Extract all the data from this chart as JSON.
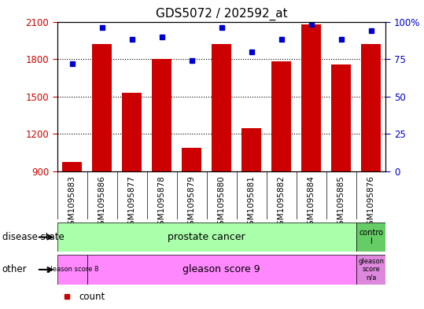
{
  "title": "GDS5072 / 202592_at",
  "samples": [
    "GSM1095883",
    "GSM1095886",
    "GSM1095877",
    "GSM1095878",
    "GSM1095879",
    "GSM1095880",
    "GSM1095881",
    "GSM1095882",
    "GSM1095884",
    "GSM1095885",
    "GSM1095876"
  ],
  "counts": [
    975,
    1920,
    1530,
    1800,
    1090,
    1920,
    1250,
    1780,
    2080,
    1760,
    1920
  ],
  "percentile_ranks": [
    72,
    96,
    88,
    90,
    74,
    96,
    80,
    88,
    98,
    88,
    94
  ],
  "ylim_left": [
    900,
    2100
  ],
  "ylim_right": [
    0,
    100
  ],
  "yticks_left": [
    900,
    1200,
    1500,
    1800,
    2100
  ],
  "yticks_right": [
    0,
    25,
    50,
    75,
    100
  ],
  "bar_color": "#cc0000",
  "dot_color": "#0000cc",
  "bar_width": 0.65,
  "axis_bg_color": "#ffffff",
  "tick_bg_color": "#d0d0d0",
  "title_fontsize": 11,
  "tick_fontsize": 8.5,
  "label_fontsize": 9,
  "ds_color": "#aaffaa",
  "other_color": "#ff88ff",
  "ctrl_color": "#66cc66",
  "gna_color": "#dd88dd"
}
